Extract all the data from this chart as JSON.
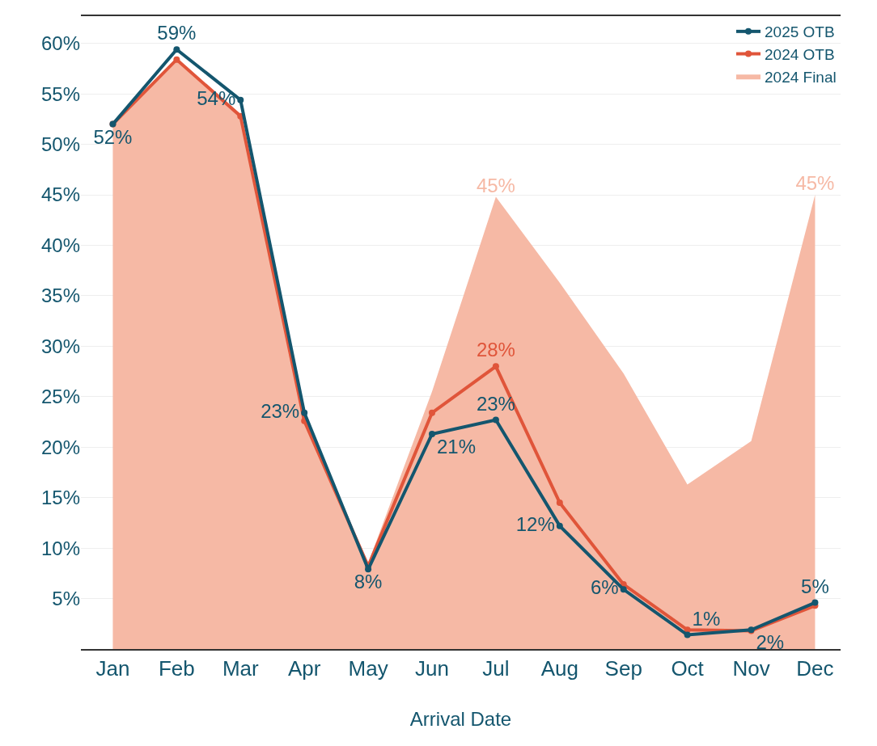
{
  "chart_data": {
    "type": "line",
    "xlabel": "Arrival Date",
    "categories": [
      "Jan",
      "Feb",
      "Mar",
      "Apr",
      "May",
      "Jun",
      "Jul",
      "Aug",
      "Sep",
      "Oct",
      "Nov",
      "Dec"
    ],
    "series": [
      {
        "name": "2024 Final",
        "type": "area",
        "color": "#f6b9a5",
        "values": [
          52,
          58.5,
          53,
          23,
          8.5,
          25.5,
          44.8,
          36.3,
          27.3,
          16.3,
          20.6,
          45
        ],
        "value_labels": [
          null,
          null,
          null,
          null,
          null,
          null,
          "45%",
          null,
          null,
          null,
          null,
          "45%"
        ]
      },
      {
        "name": "2024 OTB",
        "marker": "circle",
        "color": "#e0553a",
        "values": [
          52,
          58.4,
          52.8,
          22.6,
          8.2,
          23.4,
          28,
          14.5,
          6.4,
          1.9,
          1.8,
          4.3
        ],
        "value_labels": [
          null,
          null,
          null,
          null,
          null,
          null,
          "28%",
          null,
          null,
          null,
          null,
          null
        ]
      },
      {
        "name": "2025 OTB",
        "marker": "circle",
        "color": "#14566e",
        "values": [
          52,
          59.4,
          54.4,
          23.4,
          7.9,
          21.3,
          22.7,
          12.2,
          5.9,
          1.4,
          1.9,
          4.6
        ],
        "value_labels": [
          "52%",
          "59%",
          "54%",
          "23%",
          "8%",
          "21%",
          "23%",
          "12%",
          "6%",
          "1%",
          "2%",
          "5%"
        ]
      }
    ],
    "ylim": [
      0,
      62.7
    ],
    "yticks": [
      {
        "value": 5,
        "label": "5%"
      },
      {
        "value": 10,
        "label": "10%"
      },
      {
        "value": 15,
        "label": "15%"
      },
      {
        "value": 20,
        "label": "20%"
      },
      {
        "value": 25,
        "label": "25%"
      },
      {
        "value": 30,
        "label": "30%"
      },
      {
        "value": 35,
        "label": "35%"
      },
      {
        "value": 40,
        "label": "40%"
      },
      {
        "value": 45,
        "label": "45%"
      },
      {
        "value": 50,
        "label": "50%"
      },
      {
        "value": 55,
        "label": "55%"
      },
      {
        "value": 60,
        "label": "60%"
      }
    ],
    "grid": "y",
    "legend": "top right",
    "line_style": "solid"
  }
}
